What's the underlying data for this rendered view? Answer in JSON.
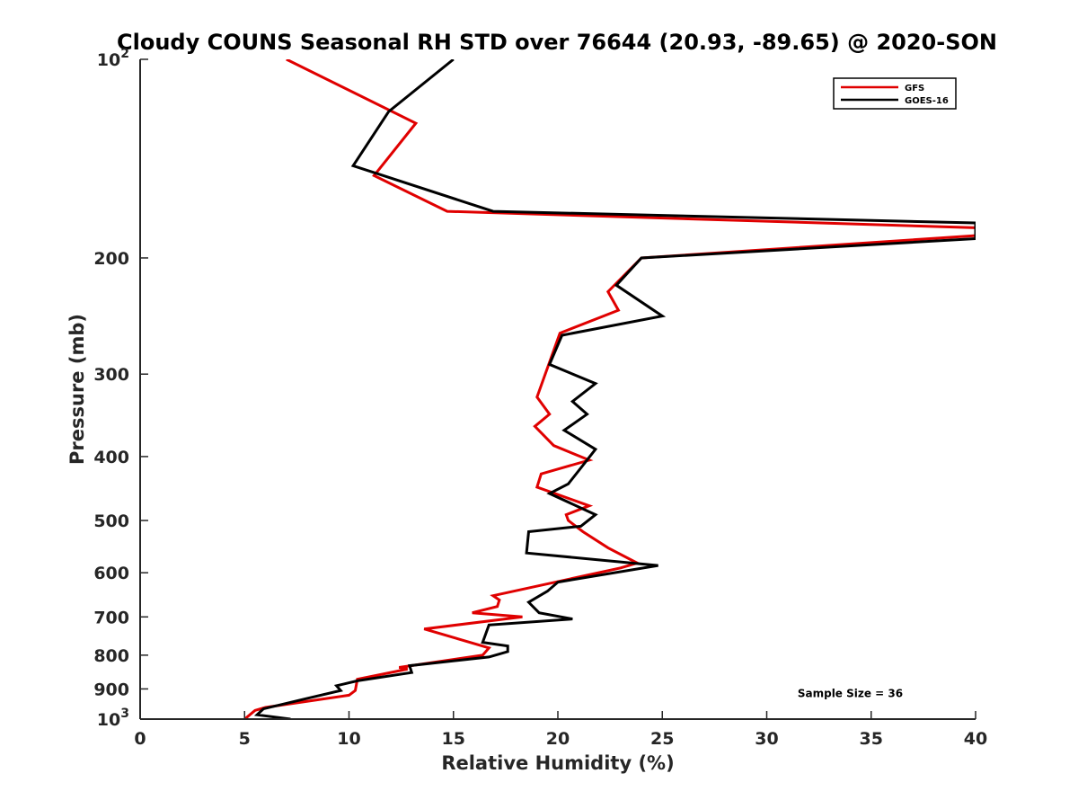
{
  "chart_data": {
    "type": "line",
    "title": "Cloudy COUNS Seasonal RH STD over 76644 (20.93, -89.65) @ 2020-SON",
    "xlabel": "Relative Humidity (%)",
    "ylabel": "Pressure (mb)",
    "xlim": [
      0,
      40
    ],
    "ylim": [
      100,
      1000
    ],
    "y_scale": "log",
    "y_reversed": true,
    "grid": false,
    "legend_position": "top-right",
    "x_ticks": [
      0,
      5,
      10,
      15,
      20,
      25,
      30,
      35,
      40
    ],
    "y_ticks": [
      {
        "value": 100,
        "base": "10",
        "exp": "2"
      },
      {
        "value": 200,
        "label": "200"
      },
      {
        "value": 300,
        "label": "300"
      },
      {
        "value": 400,
        "label": "400"
      },
      {
        "value": 500,
        "label": "500"
      },
      {
        "value": 600,
        "label": "600"
      },
      {
        "value": 700,
        "label": "700"
      },
      {
        "value": 800,
        "label": "800"
      },
      {
        "value": 900,
        "label": "900"
      },
      {
        "value": 1000,
        "base": "10",
        "exp": "3"
      }
    ],
    "series": [
      {
        "name": "GFS",
        "color": "#e00000",
        "points": [
          [
            7.0,
            100
          ],
          [
            13.2,
            125
          ],
          [
            11.2,
            150
          ],
          [
            14.7,
            170
          ],
          [
            40,
            180
          ],
          [
            40,
            185
          ],
          [
            24.0,
            200
          ],
          [
            22.4,
            225
          ],
          [
            22.9,
            240
          ],
          [
            20.1,
            260
          ],
          [
            19.0,
            325
          ],
          [
            19.6,
            345
          ],
          [
            18.9,
            360
          ],
          [
            19.8,
            385
          ],
          [
            21.5,
            405
          ],
          [
            19.2,
            425
          ],
          [
            19.0,
            445
          ],
          [
            21.5,
            475
          ],
          [
            20.4,
            490
          ],
          [
            20.5,
            500
          ],
          [
            21.2,
            520
          ],
          [
            22.4,
            550
          ],
          [
            23.8,
            580
          ],
          [
            23.0,
            590
          ],
          [
            16.9,
            650
          ],
          [
            17.2,
            660
          ],
          [
            17.1,
            675
          ],
          [
            15.9,
            690
          ],
          [
            18.3,
            700
          ],
          [
            13.6,
            730
          ],
          [
            16.7,
            780
          ],
          [
            16.4,
            800
          ],
          [
            12.4,
            835
          ],
          [
            12.8,
            840
          ],
          [
            10.4,
            870
          ],
          [
            10.3,
            905
          ],
          [
            10.0,
            920
          ],
          [
            6.0,
            960
          ],
          [
            5.5,
            970
          ],
          [
            5.0,
            1000
          ]
        ]
      },
      {
        "name": "GOES-16",
        "color": "#000000",
        "points": [
          [
            15.0,
            100
          ],
          [
            11.9,
            120
          ],
          [
            10.2,
            145
          ],
          [
            16.9,
            170
          ],
          [
            40,
            177
          ],
          [
            40,
            187
          ],
          [
            24.0,
            200
          ],
          [
            22.8,
            220
          ],
          [
            25.0,
            245
          ],
          [
            20.2,
            262
          ],
          [
            19.6,
            290
          ],
          [
            21.8,
            310
          ],
          [
            20.7,
            330
          ],
          [
            21.4,
            345
          ],
          [
            20.3,
            365
          ],
          [
            21.8,
            390
          ],
          [
            21.0,
            420
          ],
          [
            20.5,
            440
          ],
          [
            19.6,
            455
          ],
          [
            21.8,
            490
          ],
          [
            21.1,
            510
          ],
          [
            18.6,
            520
          ],
          [
            18.5,
            560
          ],
          [
            24.8,
            585
          ],
          [
            20.0,
            620
          ],
          [
            19.5,
            640
          ],
          [
            18.6,
            665
          ],
          [
            19.1,
            690
          ],
          [
            20.7,
            705
          ],
          [
            16.7,
            720
          ],
          [
            16.4,
            765
          ],
          [
            17.6,
            775
          ],
          [
            17.6,
            790
          ],
          [
            16.7,
            805
          ],
          [
            12.9,
            830
          ],
          [
            13.0,
            850
          ],
          [
            10.4,
            875
          ],
          [
            9.4,
            890
          ],
          [
            9.6,
            905
          ],
          [
            8.0,
            930
          ],
          [
            5.9,
            965
          ],
          [
            5.6,
            985
          ],
          [
            7.2,
            1000
          ]
        ]
      }
    ],
    "annotations": [
      {
        "text": "Sample Size = 36",
        "x": 34,
        "y": 915
      }
    ]
  }
}
